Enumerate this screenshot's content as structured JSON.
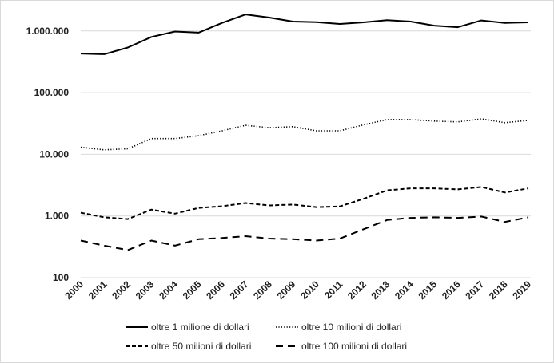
{
  "chart_data": {
    "type": "line",
    "title": "",
    "xlabel": "",
    "ylabel": "",
    "yscale": "log",
    "ylim": [
      100,
      2000000
    ],
    "grid": "horizontal",
    "legend_position": "bottom",
    "x": [
      "2000",
      "2001",
      "2002",
      "2003",
      "2004",
      "2005",
      "2006",
      "2007",
      "2008",
      "2009",
      "2010",
      "2011",
      "2012",
      "2013",
      "2014",
      "2015",
      "2016",
      "2017",
      "2018",
      "2019"
    ],
    "y_ticks": [
      {
        "value": 100,
        "label": "100"
      },
      {
        "value": 1000,
        "label": "1.000"
      },
      {
        "value": 10000,
        "label": "10.000"
      },
      {
        "value": 100000,
        "label": "100.000"
      },
      {
        "value": 1000000,
        "label": "1.000.000"
      }
    ],
    "series": [
      {
        "name": "oltre 1 milione di dollari",
        "style": "solid",
        "values": [
          430000,
          420000,
          540000,
          800000,
          980000,
          940000,
          1350000,
          1850000,
          1650000,
          1420000,
          1390000,
          1300000,
          1380000,
          1500000,
          1420000,
          1220000,
          1150000,
          1480000,
          1350000,
          1380000
        ]
      },
      {
        "name": "oltre 10 milioni di dollari",
        "style": "dotted",
        "values": [
          13000,
          11800,
          12300,
          18000,
          18000,
          20000,
          24000,
          29500,
          27000,
          28000,
          24000,
          24000,
          30000,
          36500,
          36500,
          34500,
          33500,
          37500,
          32500,
          35500
        ]
      },
      {
        "name": "oltre 50 milioni di dollari",
        "style": "dashed",
        "values": [
          1130,
          950,
          890,
          1270,
          1090,
          1350,
          1440,
          1620,
          1480,
          1530,
          1390,
          1430,
          1900,
          2600,
          2800,
          2800,
          2700,
          2950,
          2400,
          2800
        ]
      },
      {
        "name": "oltre 100 milioni di dollari",
        "style": "longdash",
        "values": [
          400,
          330,
          280,
          400,
          330,
          420,
          440,
          470,
          430,
          420,
          400,
          430,
          610,
          860,
          930,
          950,
          930,
          980,
          800,
          950
        ]
      }
    ]
  }
}
